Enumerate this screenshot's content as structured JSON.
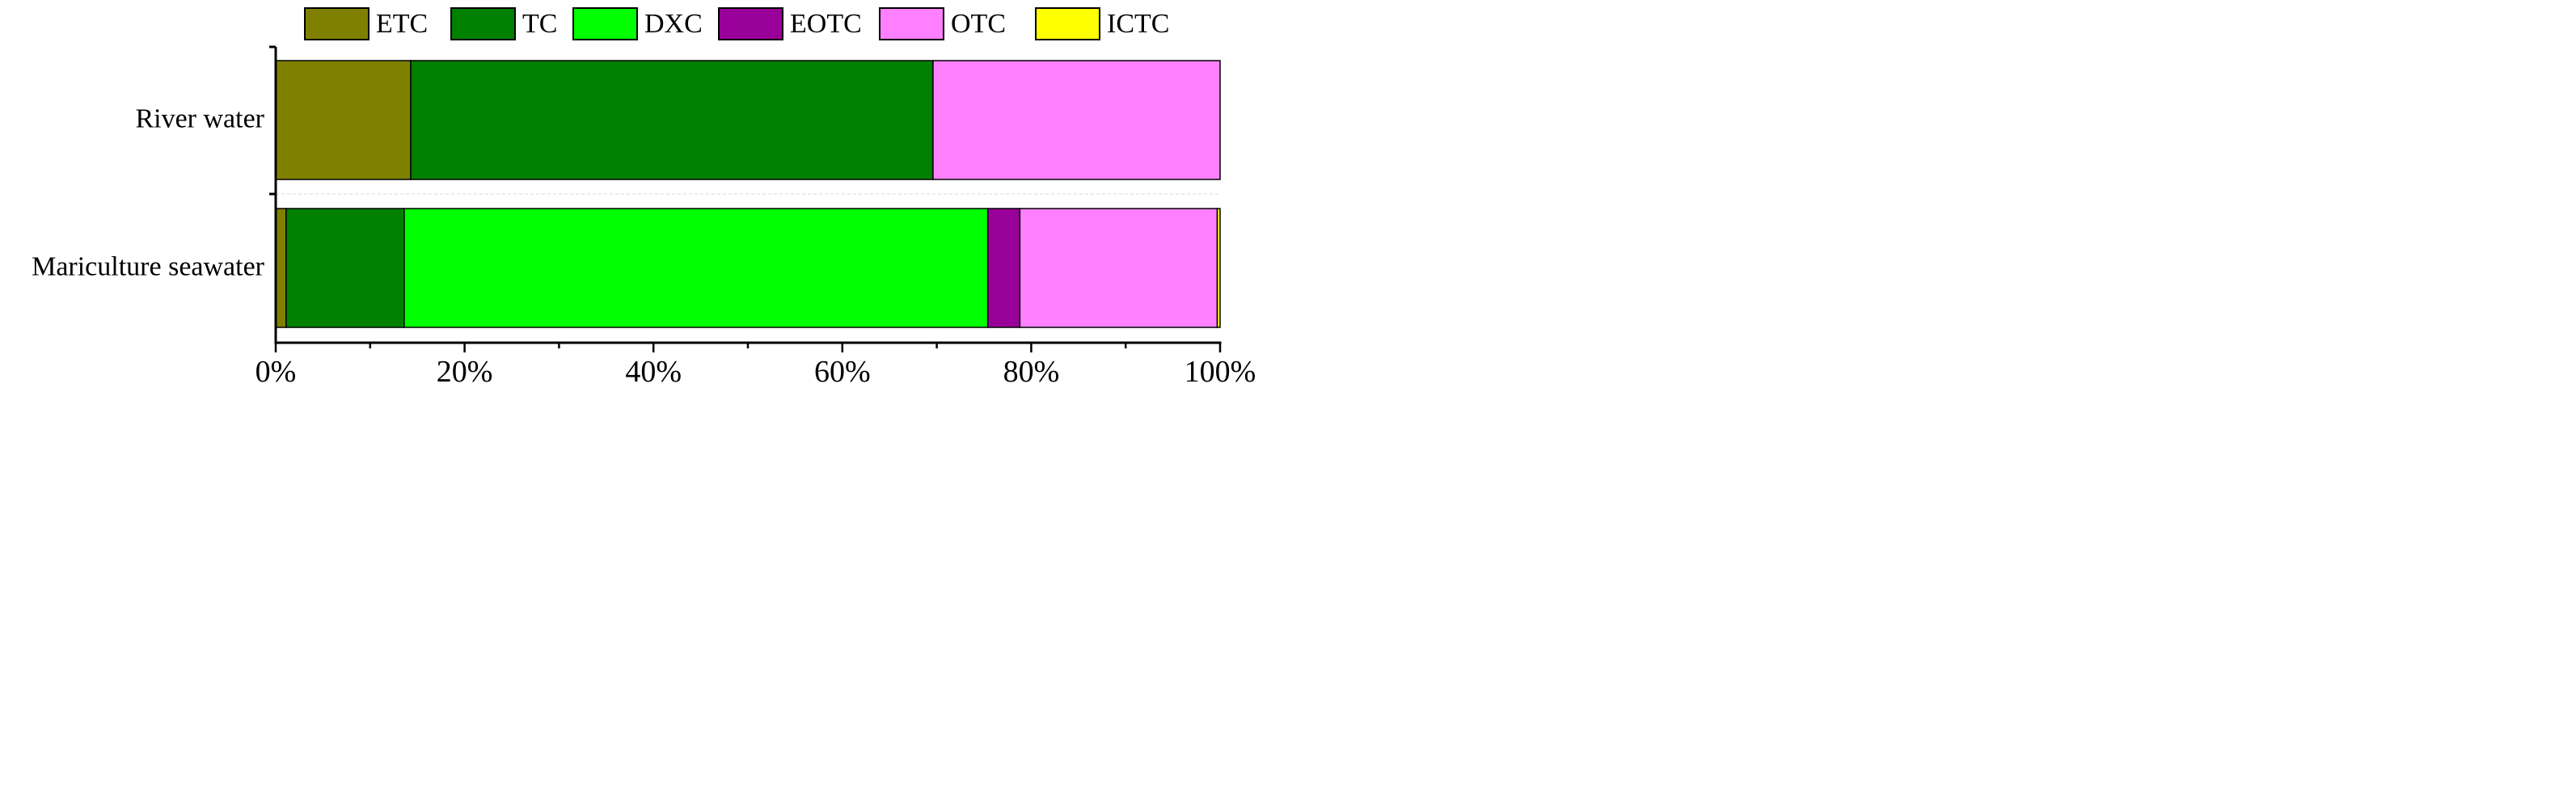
{
  "chart_data": {
    "type": "bar",
    "orientation": "horizontal",
    "stacked": true,
    "percent": true,
    "categories": [
      "River water",
      "Mariculture seawater"
    ],
    "series": [
      {
        "name": "ETC",
        "color": "#808000",
        "values": [
          14.3,
          1.1
        ]
      },
      {
        "name": "TC",
        "color": "#008000",
        "values": [
          55.3,
          12.5
        ]
      },
      {
        "name": "DXC",
        "color": "#00ff00",
        "values": [
          0,
          61.8
        ]
      },
      {
        "name": "EOTC",
        "color": "#990099",
        "values": [
          0,
          3.4
        ]
      },
      {
        "name": "OTC",
        "color": "#ff80ff",
        "values": [
          30.4,
          20.9
        ]
      },
      {
        "name": "ICTC",
        "color": "#ffff00",
        "values": [
          0,
          0.3
        ]
      }
    ],
    "x_ticks": [
      "0%",
      "20%",
      "40%",
      "60%",
      "80%",
      "100%"
    ],
    "xlim": [
      0,
      100
    ],
    "title": "",
    "xlabel": "",
    "ylabel": "",
    "legend_position": "top",
    "grid": false
  }
}
